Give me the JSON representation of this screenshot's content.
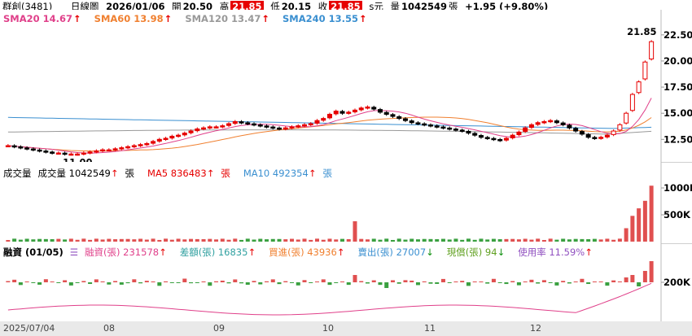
{
  "header": {
    "name": "群創(3481)",
    "period": "日線圖",
    "date": "2026/01/06",
    "open_label": "開",
    "open": "20.50",
    "high_label": "高",
    "high": "21.85",
    "low_label": "低",
    "low": "20.15",
    "close_label": "收",
    "close": "21.85",
    "unit": "s元",
    "volume_label": "量",
    "volume": "1042549",
    "volume_unit": "張",
    "change": "+1.95 (+9.80%)"
  },
  "price_legend": [
    {
      "text": "SMA20 14.67",
      "color": "#e0408a"
    },
    {
      "text": "SMA60 13.98",
      "color": "#f08030"
    },
    {
      "text": "SMA120 13.47",
      "color": "#999999"
    },
    {
      "text": "SMA240 13.55",
      "color": "#3a8fd0"
    }
  ],
  "volume_legend": [
    {
      "text": "成交量",
      "color": "#000000"
    },
    {
      "text": "成交量 1042549",
      "color": "#000000"
    },
    {
      "text": "MA5 836483",
      "color": "#e60000"
    },
    {
      "text": "MA10 492354",
      "color": "#3a8fd0"
    }
  ],
  "volume_legend_unit": "張",
  "margin_legend": {
    "title": "融資 (01/05)",
    "items": [
      {
        "text": "融資(張) 231578",
        "color": "#e0408a",
        "arrow": "up"
      },
      {
        "text": "差額(張) 16835",
        "color": "#30a0a0",
        "arrow": "up"
      },
      {
        "text": "買進(張) 43936",
        "color": "#f08030",
        "arrow": "up"
      },
      {
        "text": "賣出(張) 27007",
        "color": "#3a8fd0",
        "arrow": "down"
      },
      {
        "text": "現償(張) 94",
        "color": "#60a020",
        "arrow": "down"
      },
      {
        "text": "使用率 11.59%",
        "color": "#9050c0",
        "arrow": "up"
      }
    ]
  },
  "price_axis": [
    "22.50",
    "20.00",
    "17.50",
    "15.00",
    "12.50"
  ],
  "volume_axis": [
    "1000K",
    "500K"
  ],
  "margin_axis": [
    "200K"
  ],
  "price_annotations": {
    "high_label": "21.85",
    "low_label": "11.00"
  },
  "x_labels": [
    "2025/07/04",
    "08",
    "09",
    "10",
    "11",
    "12"
  ],
  "chart_data": {
    "type": "candlestick",
    "y_range": [
      10.5,
      23.5
    ],
    "closes": [
      11.9,
      11.8,
      11.7,
      11.6,
      11.5,
      11.4,
      11.3,
      11.2,
      11.2,
      11.1,
      11.1,
      11.1,
      11.2,
      11.3,
      11.4,
      11.5,
      11.5,
      11.6,
      11.7,
      11.8,
      11.9,
      12.0,
      12.1,
      12.3,
      12.5,
      12.6,
      12.8,
      12.9,
      13.1,
      13.3,
      13.5,
      13.6,
      13.7,
      13.7,
      13.8,
      14.0,
      14.2,
      14.1,
      14.0,
      13.9,
      13.8,
      13.7,
      13.6,
      13.5,
      13.6,
      13.7,
      13.8,
      13.9,
      14.0,
      14.3,
      14.5,
      14.9,
      15.2,
      15.0,
      15.1,
      15.3,
      15.5,
      15.6,
      15.4,
      15.1,
      14.9,
      14.7,
      14.5,
      14.3,
      14.1,
      14.0,
      13.9,
      13.8,
      13.7,
      13.6,
      13.5,
      13.4,
      13.3,
      13.1,
      12.9,
      12.7,
      12.6,
      12.5,
      12.4,
      12.6,
      12.9,
      13.2,
      13.6,
      13.9,
      14.1,
      14.2,
      14.3,
      14.1,
      13.9,
      13.6,
      13.3,
      13.0,
      12.7,
      12.6,
      12.7,
      12.9,
      13.3,
      13.9,
      15.0,
      16.8,
      18.0,
      19.9,
      21.85
    ],
    "sma20_last": 14.67,
    "sma60_last": 13.98,
    "sma120_last": 13.47,
    "sma240_last": 13.55
  }
}
